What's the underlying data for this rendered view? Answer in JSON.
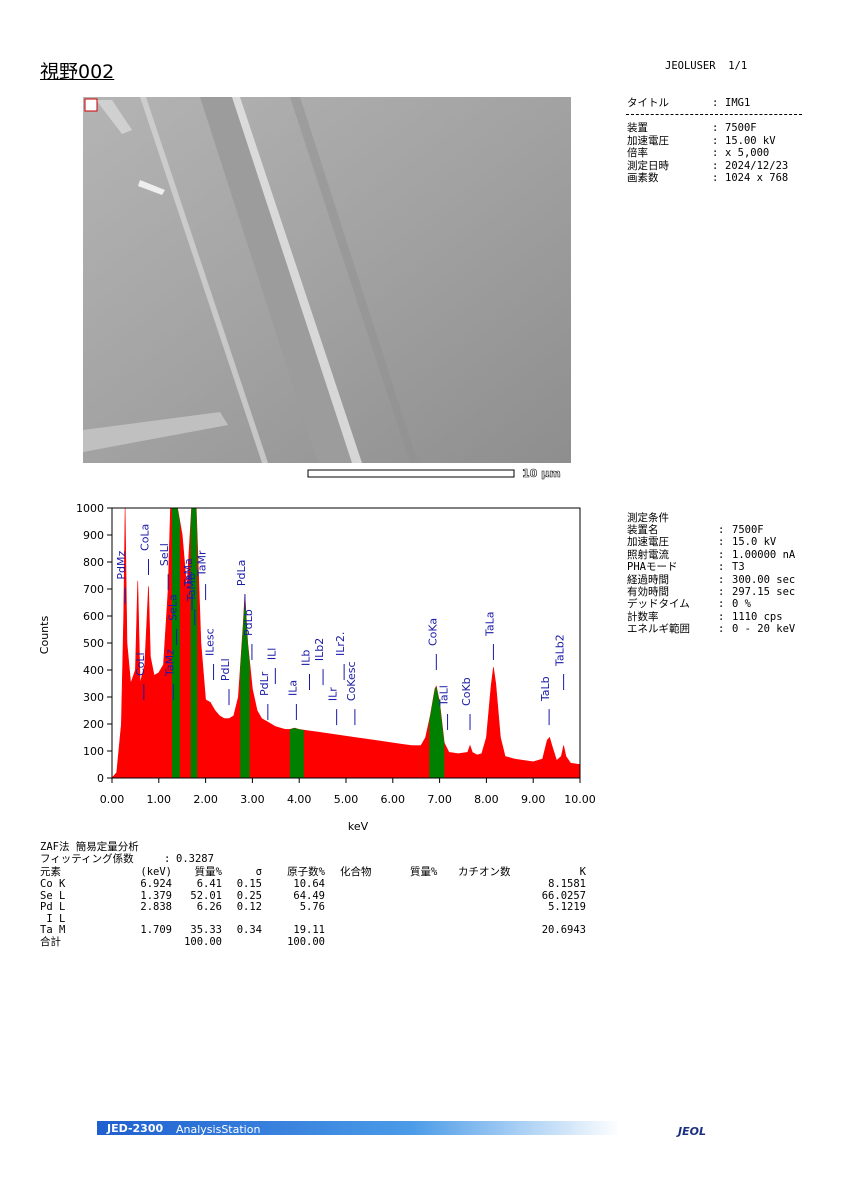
{
  "header": {
    "title": "視野002",
    "user": "JEOLUSER  1/1"
  },
  "image_info": {
    "separator": ":",
    "title_row": [
      "タイトル",
      "IMG1"
    ],
    "rows": [
      [
        "装置",
        "7500F"
      ],
      [
        "加速電圧",
        "15.00 kV"
      ],
      [
        "倍率",
        "x 5,000"
      ],
      [
        "測定日時",
        "2024/12/23"
      ],
      [
        "画素数",
        "1024 x 768"
      ]
    ]
  },
  "image": {
    "scale_bar": "10 μm"
  },
  "chart_data": {
    "type": "area",
    "xlabel": "keV",
    "ylabel": "Counts",
    "color": "#ff0000",
    "region_color": "#008000",
    "label_color": "#1a1aa8",
    "xlim": [
      0,
      10
    ],
    "ylim": [
      0,
      1000
    ],
    "xticks": [
      {
        "value": 0,
        "label": "0.00"
      },
      {
        "value": 1,
        "label": "1.00"
      },
      {
        "value": 2,
        "label": "2.00"
      },
      {
        "value": 3,
        "label": "3.00"
      },
      {
        "value": 4,
        "label": "4.00"
      },
      {
        "value": 5,
        "label": "5.00"
      },
      {
        "value": 6,
        "label": "6.00"
      },
      {
        "value": 7,
        "label": "7.00"
      },
      {
        "value": 8,
        "label": "8.00"
      },
      {
        "value": 9,
        "label": "9.00"
      },
      {
        "value": 10,
        "label": "10.00"
      }
    ],
    "yticks": [
      0,
      100,
      200,
      300,
      400,
      500,
      600,
      700,
      800,
      900,
      1000
    ],
    "x": [
      0.0,
      0.1,
      0.2,
      0.25,
      0.28,
      0.32,
      0.4,
      0.5,
      0.55,
      0.6,
      0.7,
      0.75,
      0.78,
      0.82,
      0.9,
      1.0,
      1.1,
      1.2,
      1.25,
      1.3,
      1.4,
      1.5,
      1.6,
      1.7,
      1.8,
      1.9,
      2.0,
      2.1,
      2.2,
      2.3,
      2.4,
      2.5,
      2.6,
      2.7,
      2.8,
      2.84,
      2.9,
      3.0,
      3.1,
      3.2,
      3.3,
      3.4,
      3.5,
      3.6,
      3.7,
      3.8,
      3.9,
      4.0,
      4.2,
      4.4,
      4.6,
      4.8,
      5.0,
      5.2,
      5.4,
      5.6,
      5.8,
      6.0,
      6.2,
      6.4,
      6.6,
      6.7,
      6.8,
      6.9,
      6.93,
      7.0,
      7.1,
      7.2,
      7.4,
      7.6,
      7.65,
      7.7,
      7.8,
      7.9,
      8.0,
      8.1,
      8.15,
      8.2,
      8.3,
      8.4,
      8.6,
      8.8,
      9.0,
      9.2,
      9.3,
      9.35,
      9.4,
      9.5,
      9.6,
      9.65,
      9.7,
      9.8,
      10.0
    ],
    "values": [
      0,
      20,
      200,
      600,
      1000,
      500,
      350,
      400,
      730,
      350,
      420,
      600,
      710,
      450,
      380,
      390,
      420,
      700,
      1000,
      1000,
      1000,
      900,
      700,
      1000,
      1000,
      500,
      290,
      280,
      250,
      230,
      220,
      220,
      230,
      300,
      560,
      680,
      500,
      330,
      250,
      220,
      210,
      200,
      190,
      185,
      180,
      180,
      185,
      180,
      175,
      170,
      165,
      160,
      155,
      150,
      145,
      140,
      135,
      130,
      125,
      120,
      120,
      150,
      230,
      330,
      340,
      280,
      130,
      95,
      90,
      95,
      120,
      95,
      85,
      90,
      150,
      340,
      410,
      350,
      150,
      80,
      70,
      65,
      60,
      70,
      140,
      150,
      120,
      65,
      80,
      120,
      80,
      55,
      50
    ],
    "regions": [
      [
        1.28,
        1.45
      ],
      [
        1.68,
        1.82
      ],
      [
        2.74,
        2.94
      ],
      [
        3.8,
        4.1
      ],
      [
        6.78,
        7.1
      ]
    ],
    "peak_labels": [
      {
        "text": "PdMz",
        "x": 0.28,
        "y": 720
      },
      {
        "text": "CoLl",
        "x": 0.68,
        "y": 363
      },
      {
        "text": "CoLa",
        "x": 0.78,
        "y": 826
      },
      {
        "text": "SeLl",
        "x": 1.2,
        "y": 770
      },
      {
        "text": "TaMz",
        "x": 1.31,
        "y": 363
      },
      {
        "text": "SeLa",
        "x": 1.38,
        "y": 567
      },
      {
        "text": "TaMa",
        "x": 1.71,
        "y": 696
      },
      {
        "text": "TaMb",
        "x": 1.77,
        "y": 640
      },
      {
        "text": "TaMr",
        "x": 2.0,
        "y": 733
      },
      {
        "text": "ILesc",
        "x": 2.17,
        "y": 437
      },
      {
        "text": "PdLl",
        "x": 2.5,
        "y": 344
      },
      {
        "text": "PdLa",
        "x": 2.84,
        "y": 696
      },
      {
        "text": "PdLb",
        "x": 2.99,
        "y": 511
      },
      {
        "text": "PdLr",
        "x": 3.33,
        "y": 289
      },
      {
        "text": "ILl",
        "x": 3.49,
        "y": 422
      },
      {
        "text": "ILa",
        "x": 3.94,
        "y": 289
      },
      {
        "text": "ILb",
        "x": 4.22,
        "y": 400
      },
      {
        "text": "ILb2",
        "x": 4.51,
        "y": 418
      },
      {
        "text": "ILr",
        "x": 4.8,
        "y": 270
      },
      {
        "text": "ILr2.",
        "x": 4.96,
        "y": 437
      },
      {
        "text": "CoKesc",
        "x": 5.19,
        "y": 270
      },
      {
        "text": "CoKa",
        "x": 6.93,
        "y": 474
      },
      {
        "text": "TaLl",
        "x": 7.17,
        "y": 252
      },
      {
        "text": "CoKb",
        "x": 7.65,
        "y": 252
      },
      {
        "text": "TaLa",
        "x": 8.15,
        "y": 511
      },
      {
        "text": "TaLb",
        "x": 9.34,
        "y": 270
      },
      {
        "text": "TaLb2",
        "x": 9.65,
        "y": 400
      }
    ]
  },
  "conditions": {
    "title": "測定条件",
    "separator": ":",
    "rows": [
      [
        "装置名",
        "7500F"
      ],
      [
        "加速電圧",
        "15.0 kV"
      ],
      [
        "照射電流",
        "1.00000 nA"
      ],
      [
        "PHAモード",
        "T3"
      ],
      [
        "経過時間",
        "300.00 sec"
      ],
      [
        "有効時間",
        "297.15 sec"
      ],
      [
        "デッドタイム",
        "0 %"
      ],
      [
        "計数率",
        "1110 cps"
      ],
      [
        "エネルギ範囲",
        "0 - 20 keV"
      ]
    ]
  },
  "quant": {
    "title": "ZAF法 簡易定量分析",
    "fitting_label": "フィッティング係数",
    "fitting_separator": ":",
    "fitting_value": "0.3287",
    "columns": [
      "元素",
      "(keV)",
      "質量%",
      "σ",
      "原子数%",
      "化合物",
      "質量%",
      "カチオン数",
      "K"
    ],
    "rows": [
      [
        "Co K",
        "6.924",
        "6.41",
        "0.15",
        "10.64",
        null,
        null,
        null,
        "8.1581"
      ],
      [
        "Se L",
        "1.379",
        "52.01",
        "0.25",
        "64.49",
        null,
        null,
        null,
        "66.0257"
      ],
      [
        "Pd L",
        "2.838",
        "6.26",
        "0.12",
        "5.76",
        null,
        null,
        null,
        "5.1219"
      ],
      [
        " I L",
        null,
        null,
        null,
        null,
        null,
        null,
        null,
        null
      ],
      [
        "Ta M",
        "1.709",
        "35.33",
        "0.34",
        "19.11",
        null,
        null,
        null,
        "20.6943"
      ],
      [
        "合計",
        null,
        "100.00",
        null,
        "100.00",
        null,
        null,
        null,
        null
      ]
    ]
  },
  "footer": {
    "product": "JED-2300",
    "software": "AnalysisStation",
    "logo": "JEOL"
  }
}
